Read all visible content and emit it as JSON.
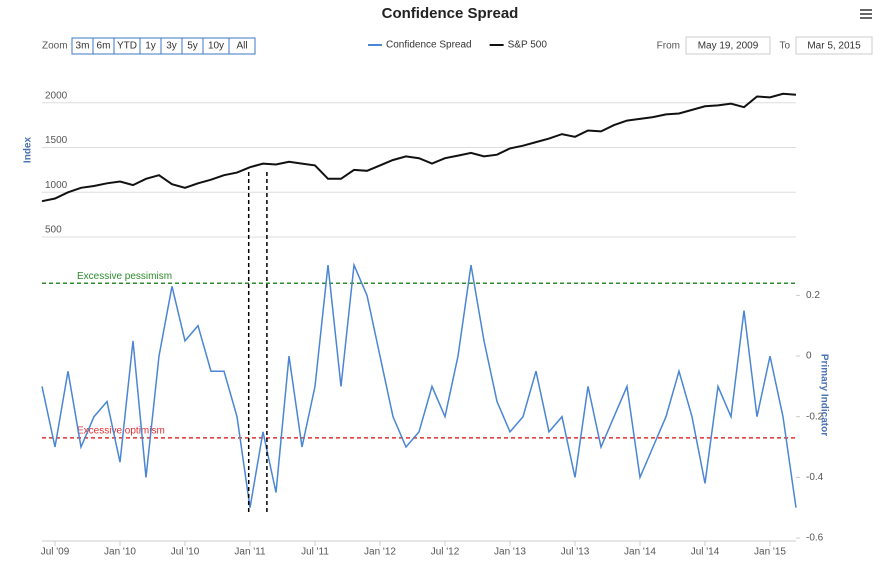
{
  "chart_data": {
    "type": "line",
    "title": "Confidence Spread",
    "range_selector": {
      "label": "Zoom",
      "buttons": [
        "3m",
        "6m",
        "YTD",
        "1y",
        "3y",
        "5y",
        "10y",
        "All"
      ],
      "from_label": "From",
      "from": "May 19, 2009",
      "to_label": "To",
      "to": "Mar 5, 2015"
    },
    "legend": "top",
    "y_label": "Index",
    "y2_label": "Primary Indicator",
    "x": [
      2009.4,
      2009.5,
      2009.6,
      2009.7,
      2009.8,
      2009.9,
      2010.0,
      2010.1,
      2010.2,
      2010.3,
      2010.4,
      2010.5,
      2010.6,
      2010.7,
      2010.8,
      2010.9,
      2011.0,
      2011.1,
      2011.2,
      2011.3,
      2011.4,
      2011.5,
      2011.6,
      2011.7,
      2011.8,
      2011.9,
      2012.0,
      2012.1,
      2012.2,
      2012.3,
      2012.4,
      2012.5,
      2012.6,
      2012.7,
      2012.8,
      2012.9,
      2013.0,
      2013.1,
      2013.2,
      2013.3,
      2013.4,
      2013.5,
      2013.6,
      2013.7,
      2013.8,
      2013.9,
      2014.0,
      2014.1,
      2014.2,
      2014.3,
      2014.4,
      2014.5,
      2014.6,
      2014.7,
      2014.8,
      2014.9,
      2015.0,
      2015.1,
      2015.2
    ],
    "series": [
      {
        "name": "Confidence Spread",
        "color": "#4a86d4",
        "axis": "y2",
        "values": [
          -0.1,
          -0.3,
          -0.05,
          -0.3,
          -0.2,
          -0.15,
          -0.35,
          0.05,
          -0.4,
          0.0,
          0.23,
          0.05,
          0.1,
          -0.05,
          -0.05,
          -0.2,
          -0.5,
          -0.25,
          -0.45,
          0.0,
          -0.3,
          -0.1,
          0.3,
          -0.1,
          0.3,
          0.2,
          0.0,
          -0.2,
          -0.3,
          -0.25,
          -0.1,
          -0.2,
          0.0,
          0.3,
          0.05,
          -0.15,
          -0.25,
          -0.2,
          -0.05,
          -0.25,
          -0.2,
          -0.4,
          -0.1,
          -0.3,
          -0.2,
          -0.1,
          -0.4,
          -0.3,
          -0.2,
          -0.05,
          -0.2,
          -0.42,
          -0.1,
          -0.2,
          0.15,
          -0.2,
          0.0,
          -0.2,
          -0.5
        ]
      },
      {
        "name": "S&P 500",
        "color": "#111111",
        "axis": "y",
        "values": [
          900,
          930,
          1000,
          1050,
          1070,
          1100,
          1120,
          1080,
          1150,
          1190,
          1090,
          1050,
          1100,
          1140,
          1190,
          1220,
          1280,
          1320,
          1310,
          1340,
          1320,
          1300,
          1150,
          1150,
          1250,
          1240,
          1300,
          1360,
          1400,
          1380,
          1320,
          1380,
          1410,
          1440,
          1400,
          1420,
          1490,
          1520,
          1560,
          1600,
          1650,
          1620,
          1690,
          1680,
          1750,
          1800,
          1820,
          1840,
          1870,
          1880,
          1920,
          1960,
          1970,
          1990,
          1950,
          2070,
          2060,
          2100,
          2090
        ]
      }
    ],
    "xlim": [
      2009.4,
      2015.2
    ],
    "xticks": [
      {
        "value": 2009.5,
        "label": "Jul '09"
      },
      {
        "value": 2010.0,
        "label": "Jan '10"
      },
      {
        "value": 2010.5,
        "label": "Jul '10"
      },
      {
        "value": 2011.0,
        "label": "Jan '11"
      },
      {
        "value": 2011.5,
        "label": "Jul '11"
      },
      {
        "value": 2012.0,
        "label": "Jan '12"
      },
      {
        "value": 2012.5,
        "label": "Jul '12"
      },
      {
        "value": 2013.0,
        "label": "Jan '13"
      },
      {
        "value": 2013.5,
        "label": "Jul '13"
      },
      {
        "value": 2014.0,
        "label": "Jan '14"
      },
      {
        "value": 2014.5,
        "label": "Jul '14"
      },
      {
        "value": 2015.0,
        "label": "Jan '15"
      }
    ],
    "ylim": [
      500,
      2500
    ],
    "yticks": [
      500,
      1000,
      1500,
      2000
    ],
    "y2lim": [
      -0.6,
      0.33
    ],
    "y2ticks": [
      -0.6,
      -0.4,
      -0.2,
      0,
      0.2
    ],
    "grid": true,
    "y2grid": false,
    "plot_lines": [
      {
        "value": 0.24,
        "label": "Excessive pessimism",
        "color": "#2e8b2e"
      },
      {
        "value": -0.27,
        "label": "Excessive optimism",
        "color": "#e03030"
      }
    ],
    "vertical_lines": [
      {
        "x": 2010.99
      },
      {
        "x": 2011.13
      }
    ]
  }
}
